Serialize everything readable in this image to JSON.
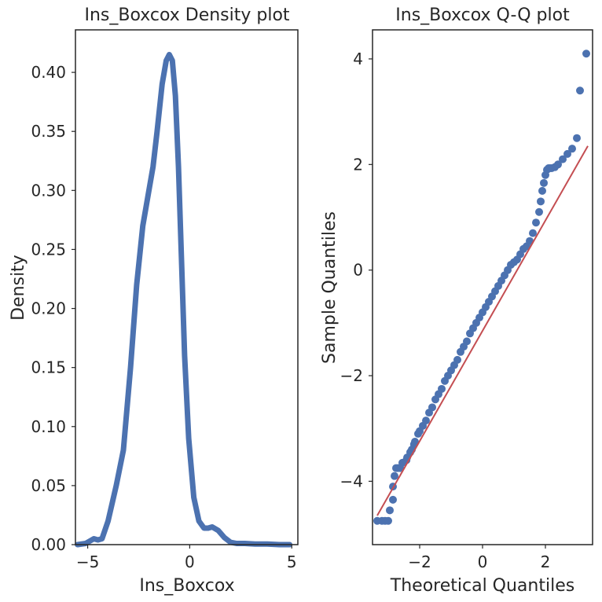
{
  "chart_data": [
    {
      "type": "line",
      "title": "Ins_Boxcox Density plot",
      "xlabel": "Ins_Boxcox",
      "ylabel": "Density",
      "xlim": [
        -5.6,
        5.3
      ],
      "ylim": [
        0,
        0.436
      ],
      "xticks": [
        -5,
        0,
        5
      ],
      "xtick_labels": [
        "−5",
        "0",
        "5"
      ],
      "yticks": [
        0,
        0.05,
        0.1,
        0.15,
        0.2,
        0.25,
        0.3,
        0.35,
        0.4
      ],
      "ytick_labels": [
        "0.00",
        "0.05",
        "0.10",
        "0.15",
        "0.20",
        "0.25",
        "0.30",
        "0.35",
        "0.40"
      ],
      "grid": false,
      "series_color": "#4c72b0",
      "x": [
        -5.5,
        -5.1,
        -4.9,
        -4.7,
        -4.5,
        -4.3,
        -4.0,
        -3.6,
        -3.25,
        -2.9,
        -2.6,
        -2.3,
        -2.1,
        -1.8,
        -1.6,
        -1.35,
        -1.15,
        -1.0,
        -0.85,
        -0.7,
        -0.55,
        -0.4,
        -0.25,
        -0.05,
        0.2,
        0.45,
        0.7,
        0.9,
        1.1,
        1.4,
        1.7,
        2.0,
        2.3,
        2.7,
        3.2,
        3.8,
        4.4,
        4.9
      ],
      "y": [
        0.0,
        0.001,
        0.003,
        0.005,
        0.004,
        0.005,
        0.02,
        0.05,
        0.08,
        0.15,
        0.22,
        0.27,
        0.29,
        0.32,
        0.35,
        0.39,
        0.41,
        0.415,
        0.41,
        0.38,
        0.32,
        0.24,
        0.16,
        0.09,
        0.04,
        0.02,
        0.014,
        0.014,
        0.015,
        0.012,
        0.006,
        0.002,
        0.001,
        0.001,
        0.0005,
        0.0005,
        0.0,
        0.0
      ]
    },
    {
      "type": "scatter",
      "title": "Ins_Boxcox Q-Q plot",
      "xlabel": "Theoretical Quantiles",
      "ylabel": "Sample Quantiles",
      "xlim": [
        -3.5,
        3.5
      ],
      "ylim": [
        -5.2,
        4.55
      ],
      "xticks": [
        -2,
        0,
        2
      ],
      "xtick_labels": [
        "−2",
        "0",
        "2"
      ],
      "yticks": [
        -4,
        -2,
        0,
        2,
        4
      ],
      "ytick_labels": [
        "−4",
        "−2",
        "0",
        "2",
        "4"
      ],
      "grid": false,
      "point_color": "#4c72b0",
      "line_color": "#c44e52",
      "reference_line": [
        [
          -3.35,
          -4.65
        ],
        [
          3.35,
          2.35
        ]
      ],
      "x": [
        -3.35,
        -3.2,
        -3.1,
        -3.0,
        -2.95,
        -2.85,
        -2.85,
        -2.8,
        -2.75,
        -2.7,
        -2.62,
        -2.55,
        -2.42,
        -2.4,
        -2.3,
        -2.25,
        -2.18,
        -2.15,
        -2.05,
        -2.0,
        -1.9,
        -1.8,
        -1.7,
        -1.6,
        -1.5,
        -1.4,
        -1.3,
        -1.2,
        -1.1,
        -1.0,
        -0.9,
        -0.8,
        -0.7,
        -0.6,
        -0.5,
        -0.4,
        -0.3,
        -0.2,
        -0.1,
        0.0,
        0.1,
        0.2,
        0.3,
        0.4,
        0.5,
        0.6,
        0.7,
        0.8,
        0.9,
        1.0,
        1.1,
        1.2,
        1.3,
        1.4,
        1.5,
        1.6,
        1.7,
        1.8,
        1.85,
        1.9,
        1.95,
        2.0,
        2.05,
        2.1,
        2.15,
        2.2,
        2.3,
        2.4,
        2.55,
        2.7,
        2.85,
        3.0,
        3.1,
        3.3
      ],
      "y": [
        -4.75,
        -4.75,
        -4.75,
        -4.75,
        -4.55,
        -4.35,
        -4.1,
        -3.9,
        -3.75,
        -3.75,
        -3.75,
        -3.65,
        -3.6,
        -3.55,
        -3.45,
        -3.4,
        -3.3,
        -3.25,
        -3.1,
        -3.05,
        -2.95,
        -2.85,
        -2.7,
        -2.6,
        -2.45,
        -2.35,
        -2.25,
        -2.1,
        -2.0,
        -1.9,
        -1.8,
        -1.7,
        -1.55,
        -1.45,
        -1.35,
        -1.2,
        -1.1,
        -1.0,
        -0.9,
        -0.8,
        -0.7,
        -0.6,
        -0.5,
        -0.4,
        -0.3,
        -0.2,
        -0.1,
        0.0,
        0.1,
        0.15,
        0.2,
        0.3,
        0.4,
        0.45,
        0.55,
        0.7,
        0.9,
        1.1,
        1.3,
        1.5,
        1.65,
        1.8,
        1.9,
        1.93,
        1.93,
        1.93,
        1.95,
        2.0,
        2.1,
        2.2,
        2.3,
        2.5,
        3.4,
        4.1
      ]
    }
  ]
}
